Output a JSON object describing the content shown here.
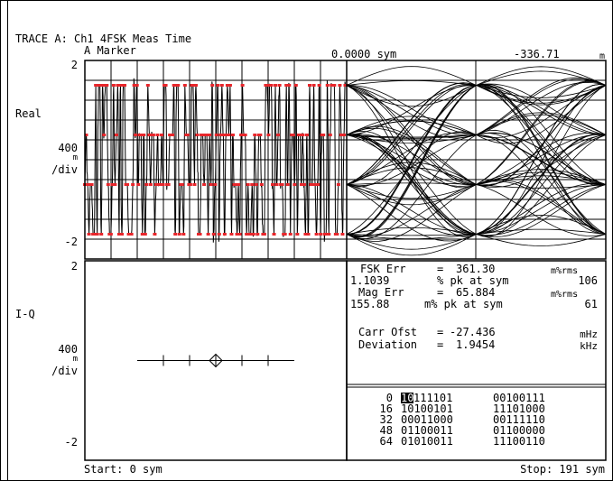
{
  "header": {
    "trace_title": "TRACE A: Ch1 4FSK Meas Time",
    "marker_label": "A Marker",
    "marker_x": "0.0000 sym",
    "marker_y": "-336.71",
    "marker_unit": "m"
  },
  "upper_panel": {
    "name": "Real",
    "top_tick": "2",
    "scale_value": "400",
    "scale_unit": "m",
    "scale_div": "/div",
    "bottom_tick": "-2"
  },
  "lower_panel": {
    "name": "I-Q",
    "top_tick": "2",
    "scale_value": "400",
    "scale_unit": "m",
    "scale_div": "/div",
    "bottom_tick": "-2"
  },
  "results": {
    "fsk_err_label": "FSK Err",
    "fsk_err_eq": "=",
    "fsk_err_value": "361.30",
    "fsk_err_unit": "m%rms",
    "fsk_err_pk_value": "1.1039",
    "fsk_err_pk_unit": "% pk at sym",
    "fsk_err_pk_sym": "106",
    "mag_err_label": "Mag Err",
    "mag_err_eq": "=",
    "mag_err_value": "65.884",
    "mag_err_unit": "m%rms",
    "mag_err_pk_value": "155.88",
    "mag_err_pk_unit": "m% pk at sym",
    "mag_err_pk_sym": "61",
    "carr_ofst_label": "Carr Ofst",
    "carr_ofst_eq": "=",
    "carr_ofst_value": "-27.436",
    "carr_ofst_unit": "mHz",
    "deviation_label": "Deviation",
    "deviation_eq": "=",
    "deviation_value": "1.9454",
    "deviation_unit": "kHz"
  },
  "symbols": {
    "rows": [
      {
        "index": "0",
        "highlight": "10",
        "rest": "111101",
        "group2": "00100111"
      },
      {
        "index": "16",
        "highlight": "",
        "rest": "10100101",
        "group2": "11101000"
      },
      {
        "index": "32",
        "highlight": "",
        "rest": "00011000",
        "group2": "00111110"
      },
      {
        "index": "48",
        "highlight": "",
        "rest": "01100011",
        "group2": "01100000"
      },
      {
        "index": "64",
        "highlight": "",
        "rest": "01010011",
        "group2": "11100110"
      }
    ]
  },
  "footer": {
    "start": "Start: 0 sym",
    "stop": "Stop: 191 sym"
  },
  "chart_data": {
    "type": "line",
    "ylim": [
      -2,
      2
    ],
    "symbol_levels": [
      1.5,
      0.5,
      -0.5,
      -1.5
    ],
    "x_start_sym": 0,
    "x_stop_sym": 191,
    "trace_color": "#000000",
    "symbol_marker_color": "#e8262b",
    "iq_points": [
      {
        "x": -0.8,
        "y": 0
      },
      {
        "x": -0.4,
        "y": 0
      },
      {
        "x": 0.0,
        "y": 0
      },
      {
        "x": 0.4,
        "y": 0
      },
      {
        "x": 0.8,
        "y": 0
      }
    ]
  }
}
